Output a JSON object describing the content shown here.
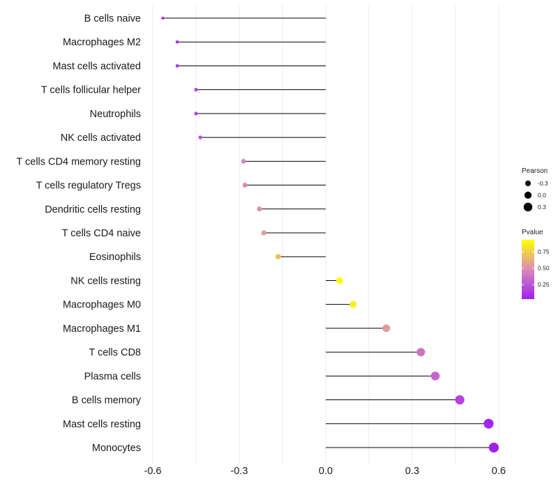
{
  "chart_data": {
    "type": "lollipop",
    "title": "",
    "xlabel": "",
    "ylabel": "",
    "xlim": [
      -0.6,
      0.6
    ],
    "xticks": [
      -0.6,
      -0.3,
      0.0,
      0.3,
      0.6
    ],
    "xtick_labels": [
      "-0.6",
      "-0.3",
      "0.0",
      "0.3",
      "0.6"
    ],
    "categories": [
      "B cells naive",
      "Macrophages M2",
      "Mast cells activated",
      "T cells follicular helper",
      "Neutrophils",
      "NK cells activated",
      "T cells CD4 memory resting",
      "T cells regulatory  Tregs ",
      "Dendritic cells resting",
      "T cells CD4 naive",
      "Eosinophils",
      "NK cells resting",
      "Macrophages M0",
      "Macrophages M1",
      "T cells CD8",
      "Plasma cells",
      "B cells memory",
      "Mast cells resting",
      "Monocytes"
    ],
    "pearson": [
      -0.565,
      -0.515,
      -0.515,
      -0.45,
      -0.45,
      -0.435,
      -0.285,
      -0.28,
      -0.23,
      -0.215,
      -0.165,
      0.048,
      0.095,
      0.21,
      0.33,
      0.38,
      0.465,
      0.565,
      0.583
    ],
    "pvalue": [
      0.1,
      0.12,
      0.12,
      0.2,
      0.2,
      0.22,
      0.45,
      0.47,
      0.52,
      0.55,
      0.7,
      0.92,
      0.86,
      0.55,
      0.38,
      0.32,
      0.18,
      0.05,
      0.04
    ],
    "legend_size": {
      "title": "Pearson",
      "labels": [
        "-0.3",
        "0.0",
        "0.3"
      ],
      "values": [
        -0.3,
        0.0,
        0.3
      ]
    },
    "legend_color": {
      "title": "Pvalue",
      "labels": [
        "0.75",
        "0.50",
        "0.25"
      ],
      "values": [
        0.75,
        0.5,
        0.25
      ],
      "range": [
        0.03,
        0.93
      ],
      "low_color": "#a020f0",
      "high_color": "#ffff00"
    },
    "legend_position": "right",
    "grid": true
  }
}
